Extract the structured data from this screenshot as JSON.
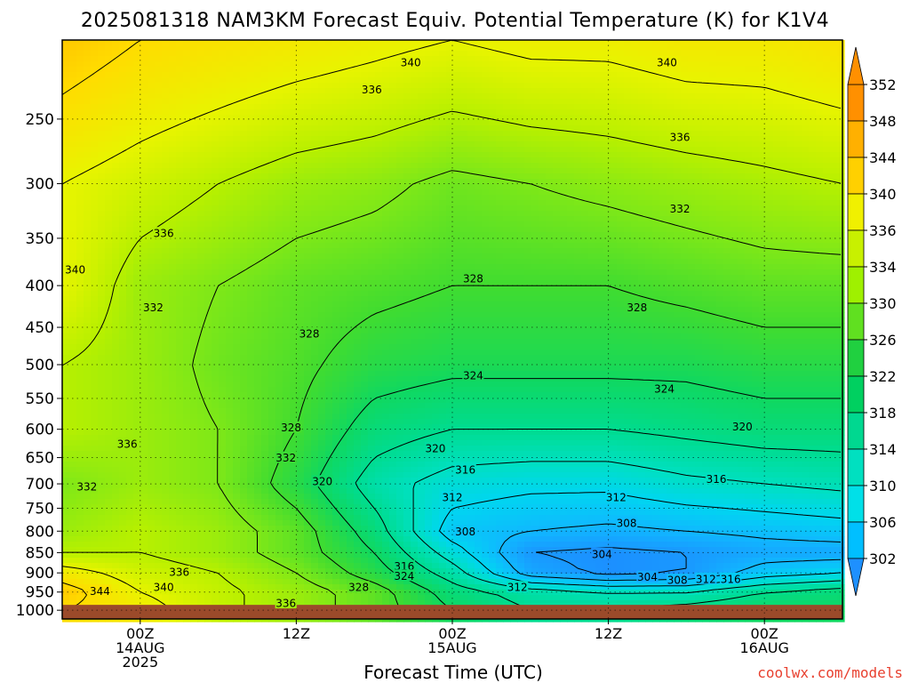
{
  "chart_data": {
    "type": "heatmap",
    "title": "2025081318 NAM3KM Forecast Equiv. Potential Temperature (K) for K1V4",
    "xlabel": "Forecast Time (UTC)",
    "ylabel": "",
    "x_ticks": [
      {
        "hour": 6,
        "lines": [
          "00Z",
          "14AUG",
          "2025"
        ]
      },
      {
        "hour": 18,
        "lines": [
          "12Z"
        ]
      },
      {
        "hour": 30,
        "lines": [
          "00Z",
          "15AUG"
        ]
      },
      {
        "hour": 42,
        "lines": [
          "12Z"
        ]
      },
      {
        "hour": 54,
        "lines": [
          "00Z",
          "16AUG"
        ]
      }
    ],
    "xlim": [
      0,
      60
    ],
    "y_ticks": [
      250,
      300,
      350,
      400,
      450,
      500,
      550,
      600,
      650,
      700,
      750,
      800,
      850,
      900,
      950,
      1000
    ],
    "ylim_hpa": [
      200,
      1025
    ],
    "y_scale": "log-pressure",
    "ground_level_hpa": 985,
    "grid": true,
    "colorbar": {
      "levels": [
        302,
        306,
        310,
        314,
        318,
        322,
        326,
        330,
        334,
        336,
        340,
        344,
        348,
        352
      ],
      "colors": [
        "#1e90ff",
        "#00bfff",
        "#00e0e8",
        "#00e0c0",
        "#00d890",
        "#00d060",
        "#20d040",
        "#60e020",
        "#9ff000",
        "#c8f000",
        "#f0f000",
        "#ffd000",
        "#ffb000",
        "#ff9000"
      ]
    },
    "colormap": [
      {
        "k": 302,
        "color": "#1e88ff"
      },
      {
        "k": 308,
        "color": "#10b8ff"
      },
      {
        "k": 312,
        "color": "#00d6f0"
      },
      {
        "k": 316,
        "color": "#00e0c0"
      },
      {
        "k": 320,
        "color": "#00dc90"
      },
      {
        "k": 324,
        "color": "#10d860"
      },
      {
        "k": 328,
        "color": "#40dc30"
      },
      {
        "k": 332,
        "color": "#7ee818"
      },
      {
        "k": 336,
        "color": "#b8f000"
      },
      {
        "k": 340,
        "color": "#e8f400"
      },
      {
        "k": 344,
        "color": "#ffdc00"
      },
      {
        "k": 348,
        "color": "#ffb400"
      }
    ],
    "profiles": [
      {
        "hour": 0,
        "pts": [
          [
            200,
            346
          ],
          [
            300,
            340
          ],
          [
            400,
            340
          ],
          [
            500,
            336
          ],
          [
            600,
            336
          ],
          [
            700,
            332
          ],
          [
            800,
            334
          ],
          [
            850,
            336
          ],
          [
            900,
            342
          ],
          [
            950,
            346
          ],
          [
            1000,
            344
          ]
        ]
      },
      {
        "hour": 6,
        "pts": [
          [
            200,
            344
          ],
          [
            300,
            338
          ],
          [
            400,
            334
          ],
          [
            500,
            334
          ],
          [
            600,
            334
          ],
          [
            700,
            334
          ],
          [
            800,
            336
          ],
          [
            850,
            336
          ],
          [
            900,
            338
          ],
          [
            950,
            340
          ],
          [
            1000,
            342
          ]
        ]
      },
      {
        "hour": 12,
        "pts": [
          [
            200,
            343
          ],
          [
            300,
            336
          ],
          [
            400,
            332
          ],
          [
            500,
            331
          ],
          [
            600,
            332
          ],
          [
            700,
            332
          ],
          [
            800,
            334
          ],
          [
            850,
            334
          ],
          [
            900,
            336
          ],
          [
            950,
            337
          ],
          [
            1000,
            337
          ]
        ]
      },
      {
        "hour": 18,
        "pts": [
          [
            200,
            342
          ],
          [
            300,
            334
          ],
          [
            400,
            330
          ],
          [
            500,
            329
          ],
          [
            600,
            328
          ],
          [
            700,
            326
          ],
          [
            800,
            330
          ],
          [
            850,
            330
          ],
          [
            900,
            332
          ],
          [
            950,
            334
          ],
          [
            1000,
            334
          ]
        ]
      },
      {
        "hour": 24,
        "pts": [
          [
            200,
            341
          ],
          [
            300,
            333
          ],
          [
            400,
            329
          ],
          [
            500,
            326
          ],
          [
            600,
            322
          ],
          [
            700,
            318
          ],
          [
            800,
            322
          ],
          [
            850,
            324
          ],
          [
            900,
            326
          ],
          [
            950,
            330
          ],
          [
            1000,
            330
          ]
        ]
      },
      {
        "hour": 30,
        "pts": [
          [
            200,
            340
          ],
          [
            300,
            331
          ],
          [
            400,
            328
          ],
          [
            500,
            325
          ],
          [
            600,
            320
          ],
          [
            700,
            314
          ],
          [
            800,
            310
          ],
          [
            850,
            314
          ],
          [
            900,
            318
          ],
          [
            950,
            322
          ],
          [
            1000,
            324
          ]
        ]
      },
      {
        "hour": 36,
        "pts": [
          [
            200,
            341
          ],
          [
            300,
            332
          ],
          [
            400,
            328
          ],
          [
            500,
            325
          ],
          [
            600,
            320
          ],
          [
            700,
            313
          ],
          [
            800,
            308
          ],
          [
            850,
            304
          ],
          [
            900,
            306
          ],
          [
            950,
            318
          ],
          [
            1000,
            320
          ]
        ]
      },
      {
        "hour": 42,
        "pts": [
          [
            200,
            341
          ],
          [
            300,
            333
          ],
          [
            400,
            328
          ],
          [
            500,
            325
          ],
          [
            600,
            320
          ],
          [
            700,
            313
          ],
          [
            800,
            307
          ],
          [
            850,
            303
          ],
          [
            900,
            303
          ],
          [
            950,
            316
          ],
          [
            1000,
            320
          ]
        ]
      },
      {
        "hour": 48,
        "pts": [
          [
            200,
            342
          ],
          [
            300,
            334
          ],
          [
            400,
            329
          ],
          [
            500,
            325
          ],
          [
            600,
            321
          ],
          [
            700,
            315
          ],
          [
            800,
            308
          ],
          [
            850,
            304
          ],
          [
            900,
            304
          ],
          [
            950,
            316
          ],
          [
            1000,
            322
          ]
        ]
      },
      {
        "hour": 54,
        "pts": [
          [
            200,
            342
          ],
          [
            300,
            335
          ],
          [
            400,
            330
          ],
          [
            500,
            326
          ],
          [
            600,
            322
          ],
          [
            700,
            316
          ],
          [
            800,
            309
          ],
          [
            850,
            306
          ],
          [
            900,
            310
          ],
          [
            950,
            320
          ],
          [
            1000,
            324
          ]
        ]
      },
      {
        "hour": 60,
        "pts": [
          [
            200,
            343
          ],
          [
            300,
            336
          ],
          [
            400,
            330
          ],
          [
            500,
            326
          ],
          [
            600,
            322
          ],
          [
            700,
            317
          ],
          [
            800,
            310
          ],
          [
            850,
            306
          ],
          [
            900,
            312
          ],
          [
            950,
            322
          ],
          [
            1000,
            324
          ]
        ]
      }
    ],
    "contour_labels": [
      {
        "text": "340",
        "hour": 26.8,
        "hpa": 213
      },
      {
        "text": "340",
        "hour": 46.5,
        "hpa": 213
      },
      {
        "text": "336",
        "hour": 23.8,
        "hpa": 230
      },
      {
        "text": "336",
        "hour": 47.5,
        "hpa": 263
      },
      {
        "text": "336",
        "hour": 7.8,
        "hpa": 345
      },
      {
        "text": "340",
        "hour": 1.0,
        "hpa": 382
      },
      {
        "text": "332",
        "hour": 47.5,
        "hpa": 322
      },
      {
        "text": "332",
        "hour": 7.0,
        "hpa": 425
      },
      {
        "text": "328",
        "hour": 31.6,
        "hpa": 392
      },
      {
        "text": "328",
        "hour": 44.2,
        "hpa": 425
      },
      {
        "text": "328",
        "hour": 19.0,
        "hpa": 458
      },
      {
        "text": "324",
        "hour": 31.6,
        "hpa": 515
      },
      {
        "text": "324",
        "hour": 46.3,
        "hpa": 535
      },
      {
        "text": "320",
        "hour": 52.3,
        "hpa": 595
      },
      {
        "text": "336",
        "hour": 5.0,
        "hpa": 625
      },
      {
        "text": "328",
        "hour": 17.6,
        "hpa": 597
      },
      {
        "text": "332",
        "hour": 17.2,
        "hpa": 650
      },
      {
        "text": "320",
        "hour": 28.7,
        "hpa": 633
      },
      {
        "text": "320",
        "hour": 20.0,
        "hpa": 695
      },
      {
        "text": "316",
        "hour": 31.0,
        "hpa": 672
      },
      {
        "text": "316",
        "hour": 50.3,
        "hpa": 690
      },
      {
        "text": "332",
        "hour": 1.9,
        "hpa": 705
      },
      {
        "text": "312",
        "hour": 30.0,
        "hpa": 727
      },
      {
        "text": "312",
        "hour": 42.6,
        "hpa": 727
      },
      {
        "text": "308",
        "hour": 31.0,
        "hpa": 800
      },
      {
        "text": "308",
        "hour": 43.4,
        "hpa": 782
      },
      {
        "text": "304",
        "hour": 41.5,
        "hpa": 853
      },
      {
        "text": "316",
        "hour": 26.3,
        "hpa": 883
      },
      {
        "text": "324",
        "hour": 26.3,
        "hpa": 907
      },
      {
        "text": "304",
        "hour": 45.0,
        "hpa": 910
      },
      {
        "text": "308",
        "hour": 47.3,
        "hpa": 918
      },
      {
        "text": "312",
        "hour": 49.5,
        "hpa": 915
      },
      {
        "text": "316",
        "hour": 51.4,
        "hpa": 915
      },
      {
        "text": "312",
        "hour": 35.0,
        "hpa": 937
      },
      {
        "text": "336",
        "hour": 9.0,
        "hpa": 897
      },
      {
        "text": "340",
        "hour": 7.8,
        "hpa": 937
      },
      {
        "text": "328",
        "hour": 22.8,
        "hpa": 937
      },
      {
        "text": "344",
        "hour": 2.9,
        "hpa": 947
      },
      {
        "text": "336",
        "hour": 17.2,
        "hpa": 980
      }
    ]
  },
  "credit": "coolwx.com/models"
}
